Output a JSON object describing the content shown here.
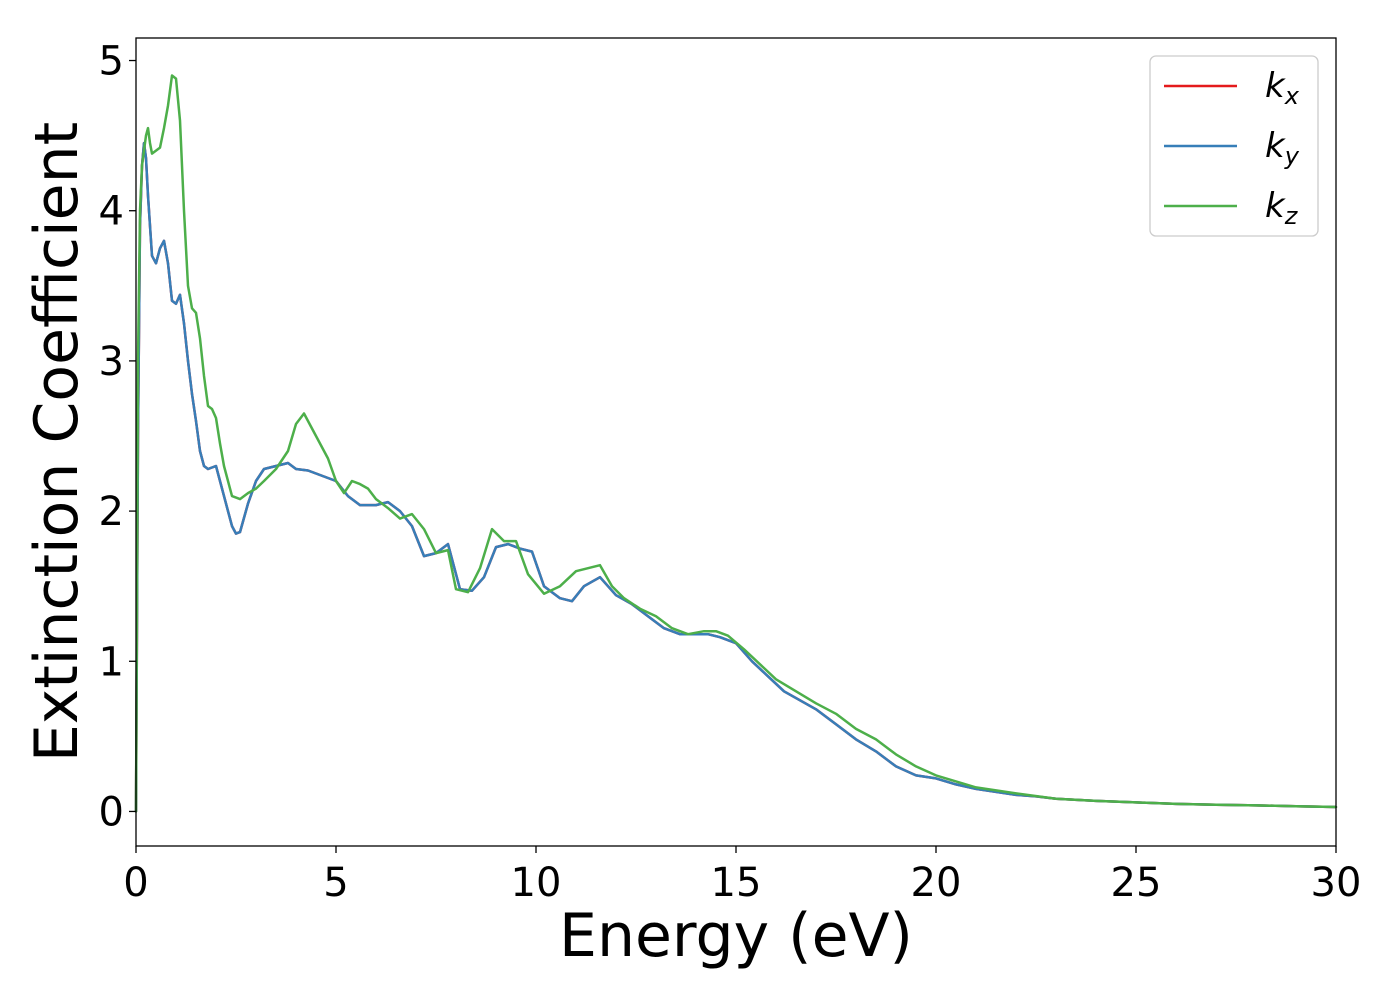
{
  "chart_data": {
    "type": "line",
    "title": "",
    "xlabel": "Energy (eV)",
    "ylabel": "Extinction Coefficient",
    "xlim": [
      0,
      30
    ],
    "ylim": [
      -0.23,
      5.15
    ],
    "xticks": [
      0,
      5,
      10,
      15,
      20,
      25,
      30
    ],
    "yticks": [
      0,
      1,
      2,
      3,
      4,
      5
    ],
    "grid": false,
    "legend_position": "top-right",
    "series": [
      {
        "name": "k_x",
        "label_main": "k",
        "label_sub": "x",
        "color": "#e41a1c",
        "x": [
          0,
          0.05,
          0.1,
          0.15,
          0.2,
          0.25,
          0.3,
          0.4,
          0.5,
          0.6,
          0.7,
          0.8,
          0.9,
          1.0,
          1.1,
          1.2,
          1.3,
          1.4,
          1.5,
          1.6,
          1.7,
          1.8,
          2.0,
          2.2,
          2.4,
          2.5,
          2.6,
          2.8,
          3.0,
          3.2,
          3.5,
          3.8,
          4.0,
          4.3,
          4.6,
          5.0,
          5.3,
          5.6,
          6.0,
          6.3,
          6.6,
          6.9,
          7.2,
          7.5,
          7.8,
          8.1,
          8.4,
          8.7,
          9.0,
          9.3,
          9.6,
          9.9,
          10.2,
          10.6,
          10.9,
          11.2,
          11.6,
          12.0,
          12.4,
          12.8,
          13.2,
          13.6,
          14.0,
          14.3,
          14.6,
          15.0,
          15.4,
          15.8,
          16.2,
          16.6,
          17.0,
          17.5,
          18.0,
          18.5,
          19.0,
          19.5,
          20.0,
          20.5,
          21.0,
          21.5,
          22.0,
          22.5,
          23.0,
          24.0,
          25.0,
          26.0,
          27.0,
          28.0,
          29.0,
          30.0
        ],
        "y": [
          0.0,
          2.5,
          3.9,
          4.3,
          4.45,
          4.35,
          4.1,
          3.7,
          3.65,
          3.75,
          3.8,
          3.65,
          3.4,
          3.38,
          3.44,
          3.25,
          3.0,
          2.78,
          2.6,
          2.4,
          2.3,
          2.28,
          2.3,
          2.1,
          1.9,
          1.85,
          1.86,
          2.05,
          2.2,
          2.28,
          2.3,
          2.32,
          2.28,
          2.27,
          2.24,
          2.2,
          2.1,
          2.04,
          2.04,
          2.06,
          2.0,
          1.9,
          1.7,
          1.72,
          1.78,
          1.48,
          1.47,
          1.56,
          1.76,
          1.78,
          1.75,
          1.73,
          1.5,
          1.42,
          1.4,
          1.5,
          1.56,
          1.44,
          1.38,
          1.3,
          1.22,
          1.18,
          1.18,
          1.18,
          1.16,
          1.12,
          1.0,
          0.9,
          0.8,
          0.74,
          0.68,
          0.58,
          0.48,
          0.4,
          0.3,
          0.24,
          0.22,
          0.18,
          0.15,
          0.13,
          0.11,
          0.1,
          0.085,
          0.07,
          0.06,
          0.05,
          0.045,
          0.04,
          0.035,
          0.03
        ]
      },
      {
        "name": "k_y",
        "label_main": "k",
        "label_sub": "y",
        "color": "#377eb8",
        "x": [
          0,
          0.05,
          0.1,
          0.15,
          0.2,
          0.25,
          0.3,
          0.4,
          0.5,
          0.6,
          0.7,
          0.8,
          0.9,
          1.0,
          1.1,
          1.2,
          1.3,
          1.4,
          1.5,
          1.6,
          1.7,
          1.8,
          2.0,
          2.2,
          2.4,
          2.5,
          2.6,
          2.8,
          3.0,
          3.2,
          3.5,
          3.8,
          4.0,
          4.3,
          4.6,
          5.0,
          5.3,
          5.6,
          6.0,
          6.3,
          6.6,
          6.9,
          7.2,
          7.5,
          7.8,
          8.1,
          8.4,
          8.7,
          9.0,
          9.3,
          9.6,
          9.9,
          10.2,
          10.6,
          10.9,
          11.2,
          11.6,
          12.0,
          12.4,
          12.8,
          13.2,
          13.6,
          14.0,
          14.3,
          14.6,
          15.0,
          15.4,
          15.8,
          16.2,
          16.6,
          17.0,
          17.5,
          18.0,
          18.5,
          19.0,
          19.5,
          20.0,
          20.5,
          21.0,
          21.5,
          22.0,
          22.5,
          23.0,
          24.0,
          25.0,
          26.0,
          27.0,
          28.0,
          29.0,
          30.0
        ],
        "y": [
          0.0,
          2.5,
          3.9,
          4.3,
          4.45,
          4.35,
          4.1,
          3.7,
          3.65,
          3.75,
          3.8,
          3.65,
          3.4,
          3.38,
          3.44,
          3.25,
          3.0,
          2.78,
          2.6,
          2.4,
          2.3,
          2.28,
          2.3,
          2.1,
          1.9,
          1.85,
          1.86,
          2.05,
          2.2,
          2.28,
          2.3,
          2.32,
          2.28,
          2.27,
          2.24,
          2.2,
          2.1,
          2.04,
          2.04,
          2.06,
          2.0,
          1.9,
          1.7,
          1.72,
          1.78,
          1.48,
          1.47,
          1.56,
          1.76,
          1.78,
          1.75,
          1.73,
          1.5,
          1.42,
          1.4,
          1.5,
          1.56,
          1.44,
          1.38,
          1.3,
          1.22,
          1.18,
          1.18,
          1.18,
          1.16,
          1.12,
          1.0,
          0.9,
          0.8,
          0.74,
          0.68,
          0.58,
          0.48,
          0.4,
          0.3,
          0.24,
          0.22,
          0.18,
          0.15,
          0.13,
          0.11,
          0.1,
          0.085,
          0.07,
          0.06,
          0.05,
          0.045,
          0.04,
          0.035,
          0.03
        ]
      },
      {
        "name": "k_z",
        "label_main": "k",
        "label_sub": "z",
        "color": "#4daf4a",
        "x": [
          0,
          0.05,
          0.1,
          0.15,
          0.2,
          0.25,
          0.3,
          0.35,
          0.4,
          0.5,
          0.6,
          0.7,
          0.8,
          0.9,
          1.0,
          1.1,
          1.2,
          1.3,
          1.4,
          1.5,
          1.6,
          1.7,
          1.8,
          1.9,
          2.0,
          2.1,
          2.2,
          2.4,
          2.6,
          2.8,
          3.0,
          3.2,
          3.5,
          3.8,
          4.0,
          4.2,
          4.4,
          4.6,
          4.8,
          5.0,
          5.2,
          5.4,
          5.6,
          5.8,
          6.0,
          6.3,
          6.6,
          6.9,
          7.2,
          7.5,
          7.8,
          8.0,
          8.3,
          8.6,
          8.9,
          9.2,
          9.5,
          9.8,
          10.2,
          10.6,
          11.0,
          11.3,
          11.6,
          11.9,
          12.2,
          12.6,
          13.0,
          13.4,
          13.8,
          14.2,
          14.5,
          14.8,
          15.2,
          15.6,
          16.0,
          16.5,
          17.0,
          17.5,
          18.0,
          18.5,
          19.0,
          19.5,
          20.0,
          20.5,
          21.0,
          21.5,
          22.0,
          23.0,
          24.0,
          25.0,
          26.0,
          27.0,
          28.0,
          29.0,
          30.0
        ],
        "y": [
          0.0,
          3.0,
          4.0,
          4.3,
          4.4,
          4.5,
          4.55,
          4.45,
          4.38,
          4.4,
          4.42,
          4.55,
          4.7,
          4.9,
          4.88,
          4.6,
          4.0,
          3.5,
          3.35,
          3.32,
          3.15,
          2.9,
          2.7,
          2.68,
          2.62,
          2.45,
          2.3,
          2.1,
          2.08,
          2.12,
          2.15,
          2.2,
          2.28,
          2.4,
          2.58,
          2.65,
          2.55,
          2.45,
          2.35,
          2.2,
          2.12,
          2.2,
          2.18,
          2.15,
          2.08,
          2.02,
          1.95,
          1.98,
          1.88,
          1.72,
          1.74,
          1.48,
          1.46,
          1.62,
          1.88,
          1.8,
          1.8,
          1.58,
          1.45,
          1.5,
          1.6,
          1.62,
          1.64,
          1.5,
          1.42,
          1.35,
          1.3,
          1.22,
          1.18,
          1.2,
          1.2,
          1.17,
          1.08,
          0.98,
          0.88,
          0.8,
          0.72,
          0.65,
          0.55,
          0.48,
          0.38,
          0.3,
          0.24,
          0.2,
          0.16,
          0.14,
          0.12,
          0.085,
          0.07,
          0.06,
          0.05,
          0.045,
          0.04,
          0.035,
          0.03
        ]
      }
    ]
  }
}
